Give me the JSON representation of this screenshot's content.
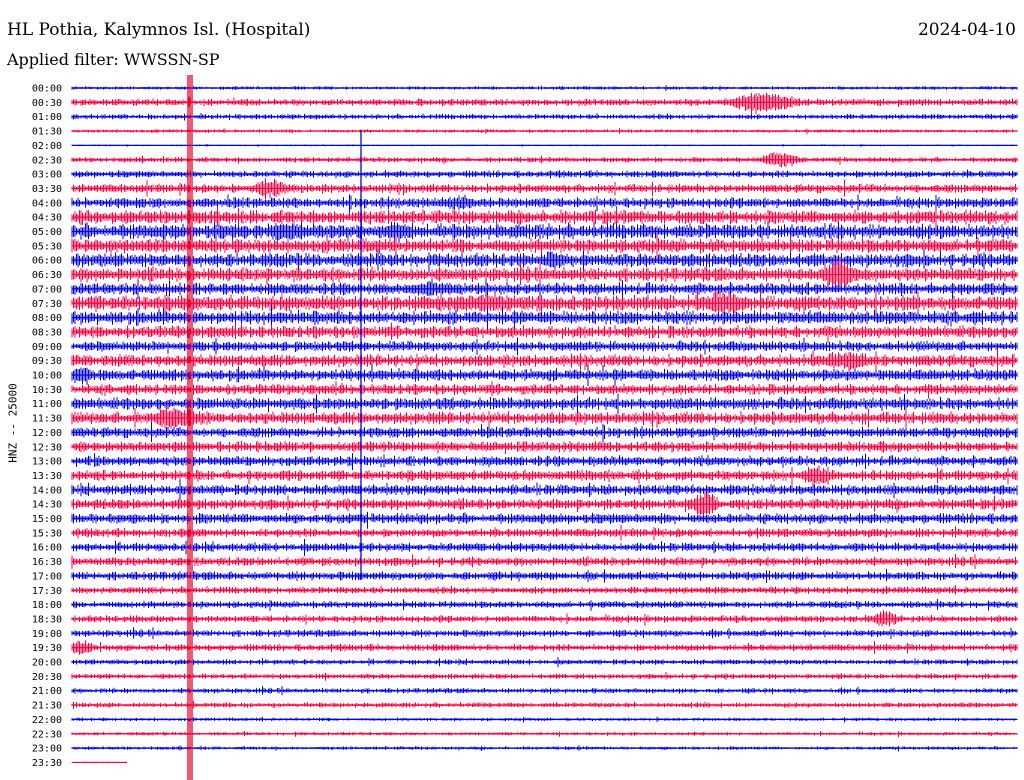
{
  "header": {
    "station": "HL Pothia, Kalymnos Isl. (Hospital)",
    "filter": "Applied filter: WWSSN-SP",
    "date": "2024-04-10"
  },
  "colors": {
    "even_hour": "#0000e6",
    "odd_hour": "#ff0040",
    "spike": "#e8002a"
  },
  "chart_data": {
    "type": "line",
    "title": "HL Pothia, Kalymnos Isl. (Hospital)",
    "subtitle": "Applied filter: WWSSN-SP",
    "date": "2024-04-10",
    "ylabel": "HNZ -- 25000",
    "xlabel": "",
    "grid": false,
    "row_labels": [
      "00:00",
      "00:30",
      "01:00",
      "01:30",
      "02:00",
      "02:30",
      "03:00",
      "03:30",
      "04:00",
      "04:30",
      "05:00",
      "05:30",
      "06:00",
      "06:30",
      "07:00",
      "07:30",
      "08:00",
      "08:30",
      "09:00",
      "09:30",
      "10:00",
      "10:30",
      "11:00",
      "11:30",
      "12:00",
      "12:30",
      "13:00",
      "13:30",
      "14:00",
      "14:30",
      "15:00",
      "15:30",
      "16:00",
      "16:30",
      "17:00",
      "17:30",
      "18:00",
      "18:30",
      "19:00",
      "19:30",
      "20:00",
      "20:30",
      "21:00",
      "21:30",
      "22:00",
      "22:30",
      "23:00",
      "23:30"
    ],
    "row_amplitudes": [
      2,
      4,
      3,
      2,
      1,
      3,
      4,
      5,
      6,
      8,
      9,
      8,
      8,
      8,
      7,
      9,
      8,
      7,
      6,
      7,
      7,
      6,
      7,
      7,
      6,
      6,
      6,
      6,
      6,
      6,
      6,
      5,
      5,
      5,
      5,
      4,
      4,
      4,
      4,
      4,
      3,
      3,
      3,
      3,
      2,
      2,
      2,
      1
    ],
    "events": [
      {
        "row": 1,
        "x_frac": 0.73,
        "amp": 14,
        "width": 0.05
      },
      {
        "row": 5,
        "x_frac": 0.75,
        "amp": 10,
        "width": 0.03
      },
      {
        "row": 7,
        "x_frac": 0.21,
        "amp": 12,
        "width": 0.03
      },
      {
        "row": 8,
        "x_frac": 0.41,
        "amp": 9,
        "width": 0.03
      },
      {
        "row": 10,
        "x_frac": 0.23,
        "amp": 14,
        "width": 0.03
      },
      {
        "row": 10,
        "x_frac": 0.34,
        "amp": 12,
        "width": 0.03
      },
      {
        "row": 12,
        "x_frac": 0.51,
        "amp": 12,
        "width": 0.02
      },
      {
        "row": 13,
        "x_frac": 0.81,
        "amp": 18,
        "width": 0.03
      },
      {
        "row": 14,
        "x_frac": 0.38,
        "amp": 10,
        "width": 0.04
      },
      {
        "row": 15,
        "x_frac": 0.44,
        "amp": 10,
        "width": 0.12
      },
      {
        "row": 15,
        "x_frac": 0.69,
        "amp": 16,
        "width": 0.03
      },
      {
        "row": 19,
        "x_frac": 0.82,
        "amp": 12,
        "width": 0.04
      },
      {
        "row": 20,
        "x_frac": 0.01,
        "amp": 12,
        "width": 0.02
      },
      {
        "row": 23,
        "x_frac": 0.11,
        "amp": 14,
        "width": 0.04
      },
      {
        "row": 27,
        "x_frac": 0.79,
        "amp": 12,
        "width": 0.03
      },
      {
        "row": 29,
        "x_frac": 0.67,
        "amp": 16,
        "width": 0.02
      },
      {
        "row": 37,
        "x_frac": 0.86,
        "amp": 10,
        "width": 0.02
      },
      {
        "row": 39,
        "x_frac": 0.01,
        "amp": 10,
        "width": 0.02
      }
    ]
  }
}
